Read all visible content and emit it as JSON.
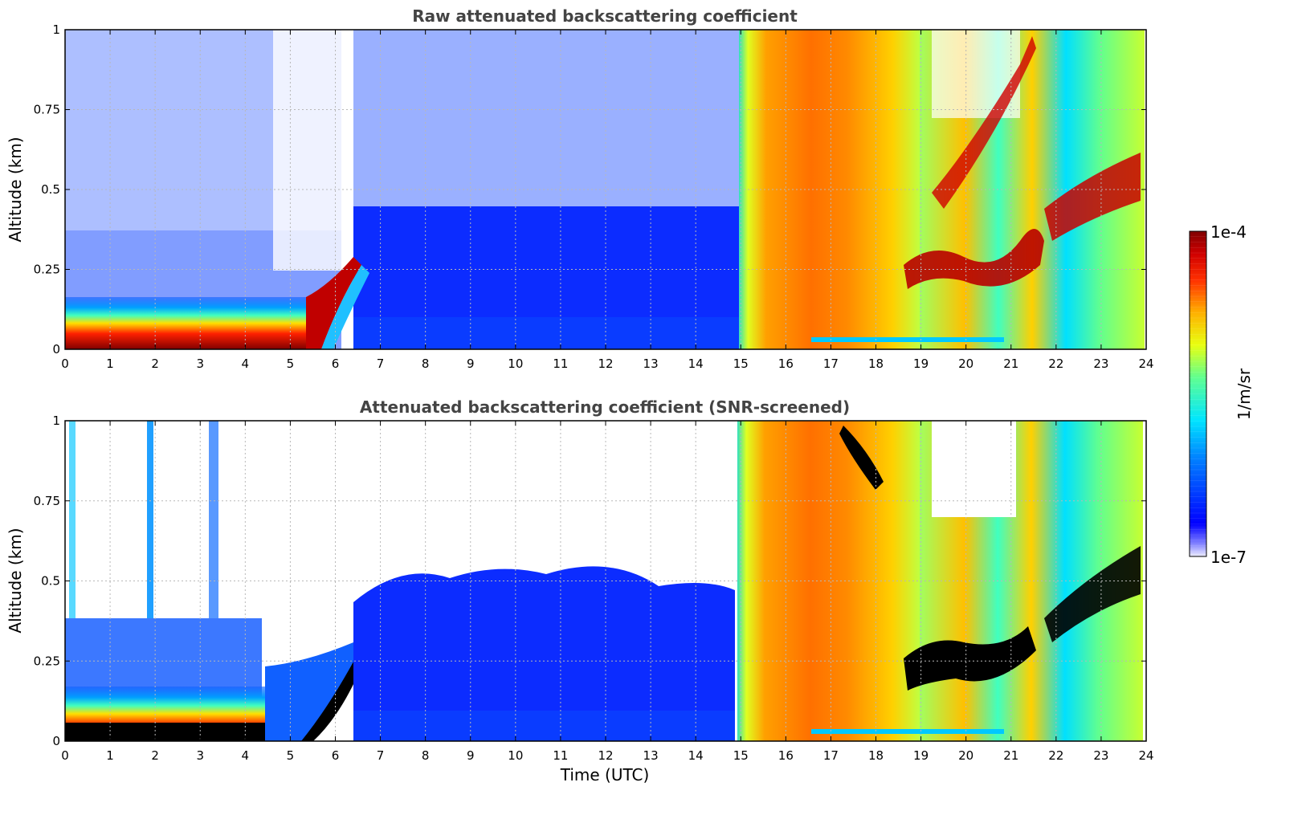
{
  "chart_data": [
    {
      "type": "heatmap",
      "title": "Raw attenuated backscattering coefficient",
      "xlabel": "",
      "ylabel": "Altitude (km)",
      "xlim": [
        0,
        24
      ],
      "ylim": [
        0,
        1
      ],
      "x_ticks": [
        "0",
        "1",
        "2",
        "3",
        "4",
        "5",
        "6",
        "7",
        "8",
        "9",
        "10",
        "11",
        "12",
        "13",
        "14",
        "15",
        "16",
        "17",
        "18",
        "19",
        "20",
        "21",
        "22",
        "23",
        "24"
      ],
      "y_ticks": [
        "0",
        "0.25",
        "0.5",
        "0.75",
        "1"
      ],
      "grid": true,
      "features": [
        {
          "x_range": [
            0,
            5.2
          ],
          "y_range": [
            0,
            0.08
          ],
          "level": "saturated (>1e-4)"
        },
        {
          "x_range": [
            0,
            5.5
          ],
          "y_range": [
            0.08,
            0.15
          ],
          "level": "strong layer, yellow-red"
        },
        {
          "x_range": [
            5.2,
            6.5
          ],
          "y_range": [
            0,
            0.3
          ],
          "level": "rising layer top ~0.3 km"
        },
        {
          "x_range": [
            6.5,
            15
          ],
          "y_range": [
            0,
            0.5
          ],
          "level": "low, blue"
        },
        {
          "x_range": [
            15,
            18.5
          ],
          "y_range": [
            0,
            1
          ],
          "level": "high, orange-red"
        },
        {
          "x_range": [
            19,
            21.5
          ],
          "y_range": [
            0.2,
            0.35
          ],
          "level": "saturated layer"
        },
        {
          "x_range": [
            22.5,
            23.9
          ],
          "y_range": [
            0.4,
            0.65
          ],
          "level": "saturated layer"
        }
      ]
    },
    {
      "type": "heatmap",
      "title": "Attenuated backscattering coefficient (SNR-screened)",
      "xlabel": "Time (UTC)",
      "ylabel": "Altitude (km)",
      "xlim": [
        0,
        24
      ],
      "ylim": [
        0,
        1
      ],
      "x_ticks": [
        "0",
        "1",
        "2",
        "3",
        "4",
        "5",
        "6",
        "7",
        "8",
        "9",
        "10",
        "11",
        "12",
        "13",
        "14",
        "15",
        "16",
        "17",
        "18",
        "19",
        "20",
        "21",
        "22",
        "23",
        "24"
      ],
      "y_ticks": [
        "0",
        "0.25",
        "0.5",
        "0.75",
        "1"
      ],
      "grid": true,
      "features": [
        {
          "x_range": [
            0,
            5.2
          ],
          "y_range": [
            0,
            0.05
          ],
          "level": "saturated (shown black)"
        },
        {
          "x_range": [
            0,
            4.5
          ],
          "y_range": [
            0.05,
            0.38
          ],
          "level": "signal retained"
        },
        {
          "x_range": [
            6.5,
            15
          ],
          "y_range": [
            0,
            0.5
          ],
          "level": "signal retained, blue"
        },
        {
          "x_range": [
            15,
            24
          ],
          "y_range": [
            0,
            1
          ],
          "level": "signal retained, high"
        }
      ]
    }
  ],
  "colorbar": {
    "label": "1/m/sr",
    "max_label": "1e-4",
    "min_label": "1e-7",
    "scale": "log",
    "range": [
      1e-07,
      0.0001
    ],
    "colormap": "jet"
  },
  "colors": {
    "frame": "#000000",
    "title_text": "#444444",
    "grid": "#b8b8b8"
  }
}
